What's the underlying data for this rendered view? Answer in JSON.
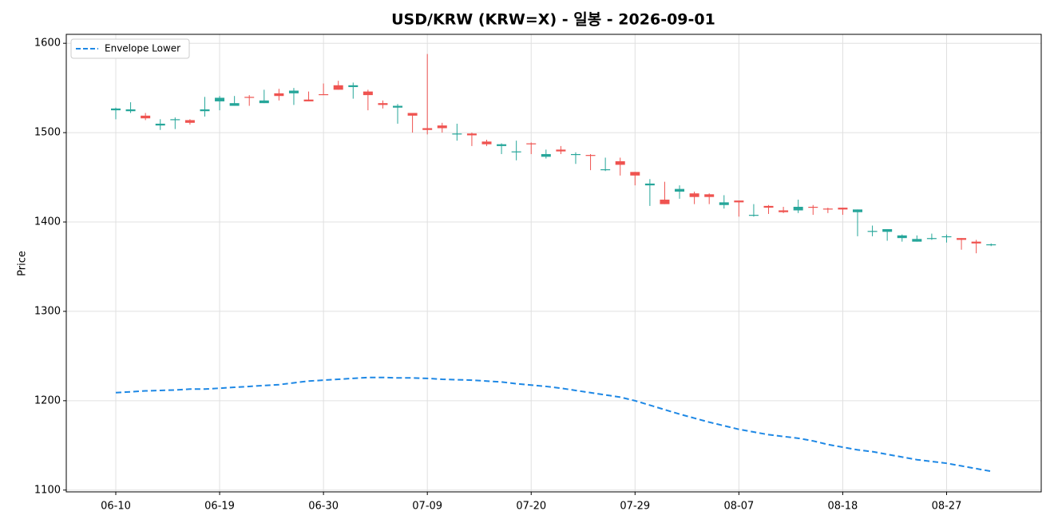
{
  "chart_data": {
    "type": "candlestick",
    "title": "USD/KRW (KRW=X) - 일봉 - 2026-09-01",
    "ylabel": "Price",
    "categories": [
      "06-10",
      null,
      null,
      null,
      null,
      null,
      null,
      "06-19",
      null,
      null,
      null,
      null,
      null,
      null,
      "06-30",
      null,
      null,
      null,
      null,
      null,
      null,
      "07-09",
      null,
      null,
      null,
      null,
      null,
      null,
      "07-20",
      null,
      null,
      null,
      null,
      null,
      null,
      "07-29",
      null,
      null,
      null,
      null,
      null,
      null,
      "08-07",
      null,
      null,
      null,
      null,
      null,
      null,
      "08-18",
      null,
      null,
      null,
      null,
      null,
      null,
      "08-27",
      null,
      null,
      null
    ],
    "open": [
      1525,
      1524,
      1519,
      1508,
      1514,
      1514,
      1524,
      1535,
      1530,
      1540,
      1533,
      1544,
      1544,
      1537,
      1543,
      1553,
      1551,
      1546,
      1533,
      1528,
      1522,
      1505,
      1508,
      1498,
      1499,
      1490,
      1485,
      1478,
      1488,
      1473,
      1481,
      1475,
      1475,
      1458,
      1468,
      1456,
      1441,
      1425,
      1434,
      1432,
      1431,
      1419,
      1424,
      1407,
      1418,
      1413,
      1413,
      1417,
      1415,
      1416,
      1411,
      1389,
      1389,
      1382,
      1378,
      1381,
      1383,
      1382,
      1378,
      1374
    ],
    "high": [
      1528,
      1534,
      1522,
      1515,
      1517,
      1515,
      1540,
      1541,
      1541,
      1542,
      1548,
      1549,
      1550,
      1546,
      1555,
      1558,
      1556,
      1548,
      1536,
      1532,
      1522,
      1588,
      1511,
      1510,
      1500,
      1492,
      1488,
      1491,
      1489,
      1481,
      1485,
      1478,
      1476,
      1472,
      1472,
      1456,
      1448,
      1445,
      1441,
      1434,
      1432,
      1430,
      1424,
      1420,
      1419,
      1417,
      1425,
      1419,
      1416,
      1416,
      1414,
      1396,
      1392,
      1386,
      1385,
      1387,
      1386,
      1382,
      1380,
      1376
    ],
    "low": [
      1515,
      1522,
      1514,
      1503,
      1504,
      1509,
      1518,
      1525,
      1530,
      1530,
      1533,
      1536,
      1531,
      1535,
      1542,
      1548,
      1538,
      1525,
      1527,
      1510,
      1500,
      1498,
      1500,
      1491,
      1485,
      1485,
      1476,
      1469,
      1476,
      1471,
      1476,
      1465,
      1458,
      1457,
      1452,
      1441,
      1418,
      1420,
      1426,
      1420,
      1420,
      1415,
      1406,
      1406,
      1409,
      1410,
      1410,
      1408,
      1410,
      1408,
      1384,
      1384,
      1379,
      1378,
      1378,
      1380,
      1377,
      1369,
      1365,
      1373
    ],
    "close": [
      1527,
      1526,
      1516,
      1510,
      1515,
      1511,
      1526,
      1539,
      1533,
      1539,
      1536,
      1541,
      1547,
      1535,
      1542,
      1548,
      1553,
      1542,
      1531,
      1530,
      1519,
      1503,
      1505,
      1499,
      1497,
      1487,
      1487,
      1479,
      1487,
      1476,
      1479,
      1476,
      1474,
      1459,
      1464,
      1452,
      1443,
      1420,
      1437,
      1428,
      1428,
      1422,
      1422,
      1408,
      1416,
      1411,
      1417,
      1416,
      1414,
      1414,
      1414,
      1390,
      1392,
      1385,
      1381,
      1382,
      1384,
      1380,
      1376,
      1375
    ],
    "up_color": "#26a69a",
    "down_color": "#ef5350",
    "series": [
      {
        "name": "Envelope Lower",
        "color": "#1e88e5",
        "style": "dashed",
        "values": [
          1209,
          1210,
          1211,
          1211.5,
          1212,
          1213,
          1213,
          1214,
          1215,
          1216,
          1217,
          1218,
          1220,
          1222,
          1223,
          1224,
          1225,
          1226,
          1226,
          1225.5,
          1225.5,
          1225,
          1224,
          1223.5,
          1223,
          1222,
          1221,
          1219,
          1217.5,
          1216,
          1214,
          1211.5,
          1209,
          1206.5,
          1204,
          1200,
          1195,
          1190,
          1185,
          1180.5,
          1176,
          1172,
          1168,
          1165,
          1162,
          1160,
          1158,
          1155,
          1151,
          1148,
          1145,
          1143,
          1140,
          1137,
          1134,
          1132,
          1130,
          1127,
          1124,
          1121
        ]
      }
    ],
    "ylim": [
      1098,
      1610
    ],
    "yticks": [
      1100,
      1200,
      1300,
      1400,
      1500,
      1600
    ],
    "grid": true,
    "legend": "upper left"
  }
}
